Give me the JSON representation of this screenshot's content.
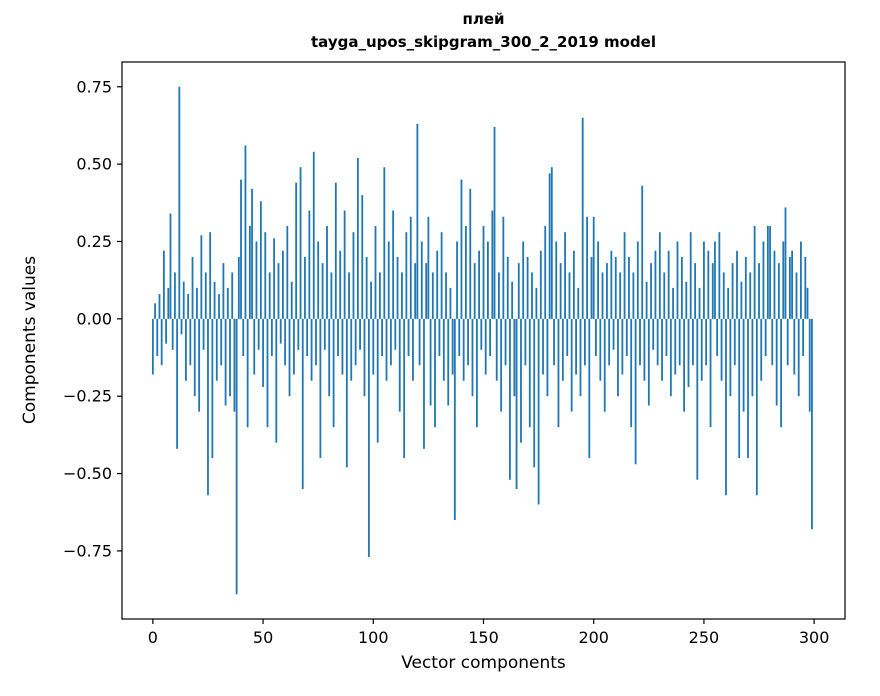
{
  "chart_data": {
    "type": "bar",
    "title_lines": [
      "плей",
      "tayga_upos_skipgram_300_2_2019 model"
    ],
    "xlabel": "Vector components",
    "ylabel": "Components values",
    "xlim": [
      -14,
      314
    ],
    "ylim": [
      -0.97,
      0.83
    ],
    "bar_color": "#1f77b4",
    "grid": false,
    "legend": null,
    "xticks": {
      "values": [
        0,
        50,
        100,
        150,
        200,
        250,
        300
      ],
      "labels": [
        "0",
        "50",
        "100",
        "150",
        "200",
        "250",
        "300"
      ]
    },
    "yticks": {
      "values": [
        -0.75,
        -0.5,
        -0.25,
        0,
        0.25,
        0.5,
        0.75
      ],
      "labels": [
        "−0.75",
        "−0.50",
        "−0.25",
        "0.00",
        "0.25",
        "0.50",
        "0.75"
      ]
    },
    "values": [
      -0.18,
      0.05,
      -0.12,
      0.08,
      -0.15,
      0.22,
      -0.08,
      0.1,
      0.34,
      -0.1,
      0.15,
      -0.42,
      0.75,
      -0.05,
      0.12,
      -0.2,
      0.08,
      -0.15,
      0.2,
      -0.25,
      0.1,
      -0.3,
      0.27,
      -0.1,
      0.15,
      -0.57,
      0.28,
      -0.45,
      0.12,
      -0.2,
      0.08,
      -0.15,
      0.18,
      -0.28,
      0.1,
      -0.25,
      0.15,
      -0.3,
      -0.89,
      0.2,
      0.45,
      -0.12,
      0.56,
      -0.35,
      0.3,
      0.42,
      -0.18,
      0.25,
      -0.1,
      0.38,
      -0.22,
      0.28,
      -0.35,
      0.15,
      -0.12,
      0.26,
      -0.4,
      0.18,
      -0.08,
      0.22,
      -0.15,
      0.3,
      -0.25,
      0.12,
      -0.18,
      0.44,
      -0.1,
      0.49,
      -0.55,
      0.2,
      -0.12,
      0.35,
      -0.2,
      0.54,
      -0.15,
      0.25,
      -0.45,
      0.18,
      -0.1,
      0.3,
      -0.25,
      0.15,
      -0.35,
      0.44,
      -0.12,
      0.22,
      -0.18,
      0.35,
      -0.48,
      0.15,
      -0.2,
      0.28,
      -0.15,
      0.52,
      -0.1,
      0.4,
      -0.25,
      0.2,
      -0.77,
      0.12,
      -0.18,
      0.3,
      -0.4,
      0.15,
      -0.12,
      0.49,
      -0.2,
      0.25,
      -0.15,
      0.35,
      -0.1,
      0.2,
      -0.3,
      0.15,
      -0.45,
      0.28,
      -0.12,
      0.33,
      -0.2,
      0.18,
      0.63,
      -0.15,
      0.25,
      -0.42,
      0.18,
      0.33,
      -0.28,
      0.15,
      -0.35,
      0.22,
      -0.12,
      0.28,
      -0.2,
      0.15,
      -0.28,
      0.1,
      -0.18,
      -0.65,
      0.25,
      -0.12,
      0.45,
      -0.2,
      0.3,
      -0.15,
      0.42,
      -0.25,
      0.18,
      -0.35,
      0.22,
      -0.1,
      0.3,
      -0.18,
      0.25,
      -0.12,
      0.35,
      0.62,
      -0.2,
      0.15,
      -0.3,
      0.33,
      -0.15,
      0.2,
      -0.52,
      0.12,
      -0.25,
      -0.55,
      0.18,
      -0.4,
      0.25,
      -0.15,
      0.2,
      -0.35,
      0.15,
      -0.48,
      0.1,
      -0.6,
      0.22,
      -0.18,
      0.3,
      -0.25,
      0.47,
      0.49,
      -0.15,
      0.25,
      -0.35,
      0.18,
      -0.2,
      0.28,
      -0.12,
      0.15,
      -0.3,
      0.22,
      -0.18,
      0.1,
      -0.25,
      0.65,
      -0.15,
      0.33,
      -0.45,
      0.2,
      0.33,
      -0.12,
      0.25,
      -0.2,
      0.15,
      -0.3,
      0.18,
      -0.15,
      0.22,
      -0.1,
      0.2,
      -0.25,
      0.15,
      -0.18,
      0.28,
      -0.12,
      0.2,
      -0.35,
      0.15,
      -0.47,
      0.25,
      -0.15,
      0.43,
      -0.2,
      0.12,
      -0.28,
      0.18,
      -0.1,
      0.22,
      -0.15,
      0.28,
      -0.2,
      0.15,
      -0.12,
      0.22,
      -0.25,
      0.1,
      -0.18,
      0.25,
      -0.15,
      0.2,
      -0.3,
      0.12,
      -0.22,
      0.28,
      -0.15,
      0.18,
      -0.52,
      0.1,
      -0.2,
      0.25,
      -0.15,
      0.22,
      -0.35,
      0.18,
      0.25,
      -0.12,
      0.28,
      -0.2,
      0.15,
      -0.57,
      0.1,
      -0.25,
      0.18,
      -0.15,
      0.22,
      -0.45,
      0.12,
      -0.3,
      0.2,
      -0.45,
      0.15,
      -0.25,
      0.3,
      -0.57,
      0.18,
      -0.2,
      0.25,
      -0.12,
      0.3,
      0.3,
      -0.15,
      0.22,
      -0.28,
      0.18,
      -0.35,
      0.25,
      0.36,
      -0.15,
      0.2,
      0.22,
      -0.18,
      0.15,
      -0.25,
      0.25,
      -0.12,
      0.2,
      0.1,
      -0.3,
      -0.68
    ]
  }
}
